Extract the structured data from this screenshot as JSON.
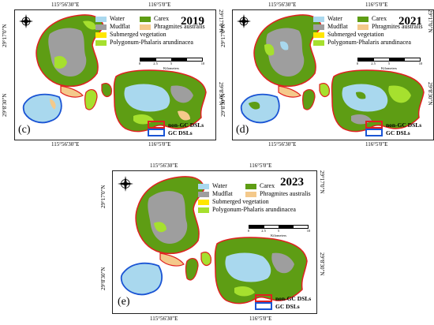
{
  "colors": {
    "water": "#a9d8ee",
    "mudflat": "#9e9e9e",
    "carex": "#5e9d14",
    "phragmites": "#f4c98b",
    "submerged": "#ffe600",
    "polygonum": "#a6e02e",
    "non_gc_outline": "#e02020",
    "gc_outline": "#1a54d4"
  },
  "legend": {
    "water": "Water",
    "carex": "Carex",
    "mudflat": "Mudflat",
    "phragmites": "Phragmites australis",
    "submerged": "Submerged vegetation",
    "polygonum": "Polygonum-Phalaris arundinacea"
  },
  "dsl_legend": {
    "non_gc": "non-GC DSLs",
    "gc": "GC DSLs"
  },
  "scale": {
    "ticks": [
      "0",
      "2.5",
      "5",
      "10"
    ],
    "unit": "Kilometers"
  },
  "coords": {
    "top_left": "115°56'30\"E",
    "top_right": "116°5'0\"E",
    "bottom_left": "115°56'30\"E",
    "bottom_right": "116°5'0\"E",
    "lat_top": "29°17'0\"N",
    "lat_bottom": "29°8'30\"N"
  },
  "panels": [
    {
      "year": "2019",
      "letter": "(c)"
    },
    {
      "year": "2021",
      "letter": "(d)"
    },
    {
      "year": "2023",
      "letter": "(e)"
    }
  ]
}
